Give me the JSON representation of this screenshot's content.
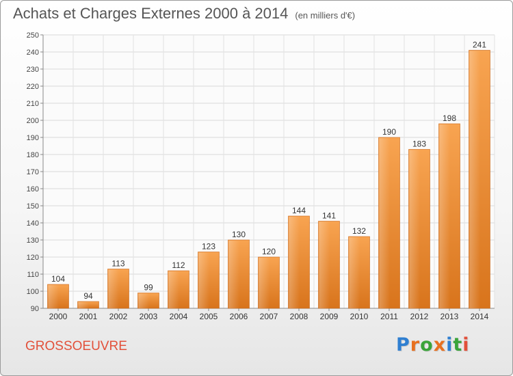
{
  "header": {
    "title": "Achats et Charges Externes 2000 à 2014",
    "subtitle": "(en milliers d'€)"
  },
  "commune": "GROSSOEUVRE",
  "logo": {
    "text": "Proxiti",
    "letter_colors": [
      "#2f7fd1",
      "#e8701f",
      "#3aa43a",
      "#e8701f",
      "#2f7fd1",
      "#3aa43a",
      "#e2503a"
    ]
  },
  "chart_data": {
    "type": "bar",
    "categories": [
      "2000",
      "2001",
      "2002",
      "2003",
      "2004",
      "2005",
      "2006",
      "2007",
      "2008",
      "2009",
      "2010",
      "2011",
      "2012",
      "2013",
      "2014"
    ],
    "values": [
      104,
      94,
      113,
      99,
      112,
      123,
      130,
      120,
      144,
      141,
      132,
      190,
      183,
      198,
      241
    ],
    "title": "Achats et Charges Externes 2000 à 2014",
    "subtitle": "(en milliers d'€)",
    "xlabel": "",
    "ylabel": "",
    "ylim": [
      90,
      250
    ],
    "yticks": [
      90,
      100,
      110,
      120,
      130,
      140,
      150,
      160,
      170,
      180,
      190,
      200,
      210,
      220,
      230,
      240,
      250
    ],
    "grid": true,
    "data_labels": true,
    "bar_color": "#f0963c"
  }
}
